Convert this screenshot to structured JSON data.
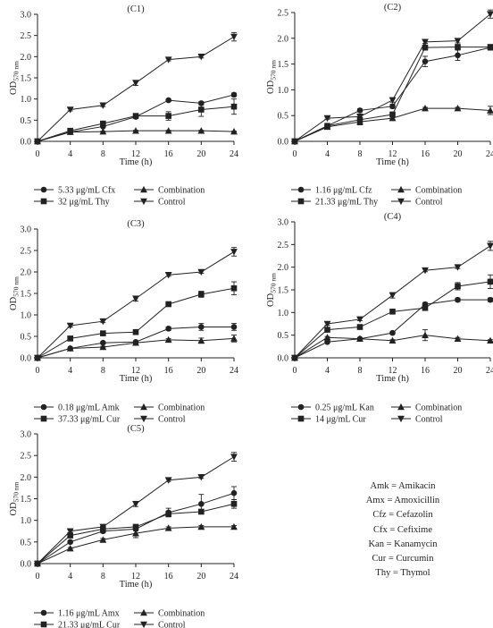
{
  "legend_markers": {
    "circle": "circle",
    "square": "square",
    "triangle_up": "triangle-up",
    "triangle_down": "triangle-down"
  },
  "abbreviations": [
    "Amk = Amikacin",
    "Amx = Amoxicillin",
    "Cfz = Cefazolin",
    "Cfx = Cefixime",
    "Kan = Kanamycin",
    "Cur = Curcumin",
    "Thy = Thymol"
  ],
  "chart_data": [
    {
      "id": "C1",
      "type": "line",
      "title": "(C1)",
      "xlabel": "Time (h)",
      "ylabel": "OD",
      "ylabel_sub": "570 nm",
      "x": [
        0,
        4,
        8,
        12,
        16,
        20,
        24
      ],
      "xticks": [
        "0",
        "4",
        "8",
        "12",
        "16",
        "20",
        "24"
      ],
      "ylim": [
        0,
        3.0
      ],
      "yticks": [
        "0.0",
        "0.5",
        "1.0",
        "1.5",
        "2.0",
        "2.5",
        "3.0"
      ],
      "series": [
        {
          "name": "5.33 μg/mL Cfx",
          "marker": "circle",
          "values": [
            0,
            0.22,
            0.35,
            0.58,
            0.97,
            0.9,
            1.1
          ],
          "errors": [
            0,
            0.02,
            0.02,
            0.03,
            0.03,
            0.04,
            0.04
          ]
        },
        {
          "name": "32 μg/mL Thy",
          "marker": "square",
          "values": [
            0,
            0.25,
            0.42,
            0.6,
            0.6,
            0.75,
            0.82
          ],
          "errors": [
            0,
            0.02,
            0.03,
            0.04,
            0.1,
            0.16,
            0.18
          ]
        },
        {
          "name": "Combination",
          "marker": "triangle-up",
          "values": [
            0,
            0.22,
            0.23,
            0.25,
            0.25,
            0.25,
            0.23
          ],
          "errors": [
            0,
            0.01,
            0.01,
            0.01,
            0.01,
            0.01,
            0.01
          ]
        },
        {
          "name": "Control",
          "marker": "triangle-down",
          "values": [
            0,
            0.75,
            0.85,
            1.38,
            1.93,
            2.0,
            2.47
          ],
          "errors": [
            0,
            0.03,
            0.03,
            0.06,
            0.03,
            0.03,
            0.1
          ]
        }
      ]
    },
    {
      "id": "C2",
      "type": "line",
      "title": "(C2)",
      "xlabel": "Time (h)",
      "ylabel": "OD",
      "ylabel_sub": "570 nm",
      "x": [
        0,
        4,
        8,
        12,
        16,
        20,
        24
      ],
      "xticks": [
        "0",
        "4",
        "8",
        "12",
        "16",
        "20",
        "24"
      ],
      "ylim": [
        0,
        2.5
      ],
      "yticks": [
        "0.0",
        "0.5",
        "1.0",
        "1.5",
        "2.0",
        "2.5"
      ],
      "series": [
        {
          "name": "1.16 μg/mL Cfz",
          "marker": "circle",
          "values": [
            0,
            0.3,
            0.6,
            0.68,
            1.55,
            1.67,
            1.82
          ],
          "errors": [
            0,
            0.02,
            0.03,
            0.04,
            0.1,
            0.1,
            0.05
          ]
        },
        {
          "name": "21.33 μg/mL Thy",
          "marker": "square",
          "values": [
            0,
            0.3,
            0.42,
            0.52,
            1.82,
            1.83,
            1.83
          ],
          "errors": [
            0,
            0.02,
            0.1,
            0.05,
            0.05,
            0.05,
            0.05
          ]
        },
        {
          "name": "Combination",
          "marker": "triangle-up",
          "values": [
            0,
            0.28,
            0.38,
            0.45,
            0.64,
            0.64,
            0.6
          ],
          "errors": [
            0,
            0.01,
            0.02,
            0.02,
            0.02,
            0.02,
            0.08
          ]
        },
        {
          "name": "Control",
          "marker": "triangle-down",
          "values": [
            0,
            0.45,
            0.48,
            0.8,
            1.93,
            1.95,
            2.47
          ],
          "errors": [
            0,
            0.02,
            0.03,
            0.04,
            0.03,
            0.04,
            0.08
          ]
        }
      ]
    },
    {
      "id": "C3",
      "type": "line",
      "title": "(C3)",
      "xlabel": "Time (h)",
      "ylabel": "OD",
      "ylabel_sub": "570 nm",
      "x": [
        0,
        4,
        8,
        12,
        16,
        20,
        24
      ],
      "xticks": [
        "0",
        "4",
        "8",
        "12",
        "16",
        "20",
        "24"
      ],
      "ylim": [
        0,
        3.0
      ],
      "yticks": [
        "0.0",
        "0.5",
        "1.0",
        "1.5",
        "2.0",
        "2.5",
        "3.0"
      ],
      "series": [
        {
          "name": "0.18 μg/mL Amk",
          "marker": "circle",
          "values": [
            0,
            0.22,
            0.35,
            0.37,
            0.68,
            0.72,
            0.72
          ],
          "errors": [
            0,
            0.02,
            0.02,
            0.02,
            0.04,
            0.08,
            0.08
          ]
        },
        {
          "name": "37.33 μg/mL Cur",
          "marker": "square",
          "values": [
            0,
            0.45,
            0.57,
            0.6,
            1.25,
            1.48,
            1.62
          ],
          "errors": [
            0,
            0.02,
            0.02,
            0.03,
            0.05,
            0.07,
            0.15
          ]
        },
        {
          "name": "Combination",
          "marker": "triangle-up",
          "values": [
            0,
            0.22,
            0.25,
            0.35,
            0.42,
            0.4,
            0.45
          ],
          "errors": [
            0,
            0.01,
            0.02,
            0.02,
            0.03,
            0.06,
            0.08
          ]
        },
        {
          "name": "Control",
          "marker": "triangle-down",
          "values": [
            0,
            0.75,
            0.85,
            1.38,
            1.93,
            2.0,
            2.47
          ],
          "errors": [
            0,
            0.03,
            0.03,
            0.06,
            0.03,
            0.03,
            0.1
          ]
        }
      ]
    },
    {
      "id": "C4",
      "type": "line",
      "title": "(C4)",
      "xlabel": "Time (h)",
      "ylabel": "OD",
      "ylabel_sub": "570 nm",
      "x": [
        0,
        4,
        8,
        12,
        16,
        20,
        24
      ],
      "xticks": [
        "0",
        "4",
        "8",
        "12",
        "16",
        "20",
        "24"
      ],
      "ylim": [
        0,
        3.0
      ],
      "yticks": [
        "0.0",
        "0.5",
        "1.0",
        "1.5",
        "2.0",
        "2.5",
        "3.0"
      ],
      "series": [
        {
          "name": "0.25 μg/mL Kan",
          "marker": "circle",
          "values": [
            0,
            0.35,
            0.42,
            0.55,
            1.18,
            1.28,
            1.28
          ],
          "errors": [
            0,
            0.02,
            0.02,
            0.03,
            0.04,
            0.04,
            0.04
          ]
        },
        {
          "name": "14 μg/mL Cur",
          "marker": "square",
          "values": [
            0,
            0.62,
            0.68,
            1.02,
            1.1,
            1.58,
            1.68
          ],
          "errors": [
            0,
            0.02,
            0.03,
            0.03,
            0.05,
            0.08,
            0.15
          ]
        },
        {
          "name": "Combination",
          "marker": "triangle-up",
          "values": [
            0,
            0.45,
            0.42,
            0.38,
            0.5,
            0.42,
            0.38
          ],
          "errors": [
            0,
            0.02,
            0.02,
            0.02,
            0.12,
            0.03,
            0.02
          ]
        },
        {
          "name": "Control",
          "marker": "triangle-down",
          "values": [
            0,
            0.75,
            0.85,
            1.38,
            1.93,
            2.0,
            2.47
          ],
          "errors": [
            0,
            0.03,
            0.03,
            0.06,
            0.03,
            0.03,
            0.1
          ]
        }
      ]
    },
    {
      "id": "C5",
      "type": "line",
      "title": "(C5)",
      "xlabel": "Time (h)",
      "ylabel": "OD",
      "ylabel_sub": "570 nm",
      "x": [
        0,
        4,
        8,
        12,
        16,
        20,
        24
      ],
      "xticks": [
        "0",
        "4",
        "8",
        "12",
        "16",
        "20",
        "24"
      ],
      "ylim": [
        0,
        3.0
      ],
      "yticks": [
        "0.0",
        "0.5",
        "1.0",
        "1.5",
        "2.0",
        "2.5",
        "3.0"
      ],
      "series": [
        {
          "name": "1.16 μg/mL Amx",
          "marker": "circle",
          "values": [
            0,
            0.5,
            0.75,
            0.8,
            1.18,
            1.38,
            1.63
          ],
          "errors": [
            0,
            0.03,
            0.04,
            0.04,
            0.1,
            0.22,
            0.15
          ]
        },
        {
          "name": "21.33 μg/mL Cur",
          "marker": "square",
          "values": [
            0,
            0.65,
            0.8,
            0.85,
            1.15,
            1.2,
            1.38
          ],
          "errors": [
            0,
            0.03,
            0.04,
            0.05,
            0.05,
            0.05,
            0.1
          ]
        },
        {
          "name": "Combination",
          "marker": "triangle-up",
          "values": [
            0,
            0.35,
            0.55,
            0.7,
            0.82,
            0.85,
            0.85
          ],
          "errors": [
            0,
            0.02,
            0.03,
            0.1,
            0.03,
            0.03,
            0.03
          ]
        },
        {
          "name": "Control",
          "marker": "triangle-down",
          "values": [
            0,
            0.75,
            0.85,
            1.38,
            1.93,
            2.0,
            2.47
          ],
          "errors": [
            0,
            0.03,
            0.03,
            0.06,
            0.03,
            0.03,
            0.1
          ]
        }
      ]
    }
  ]
}
